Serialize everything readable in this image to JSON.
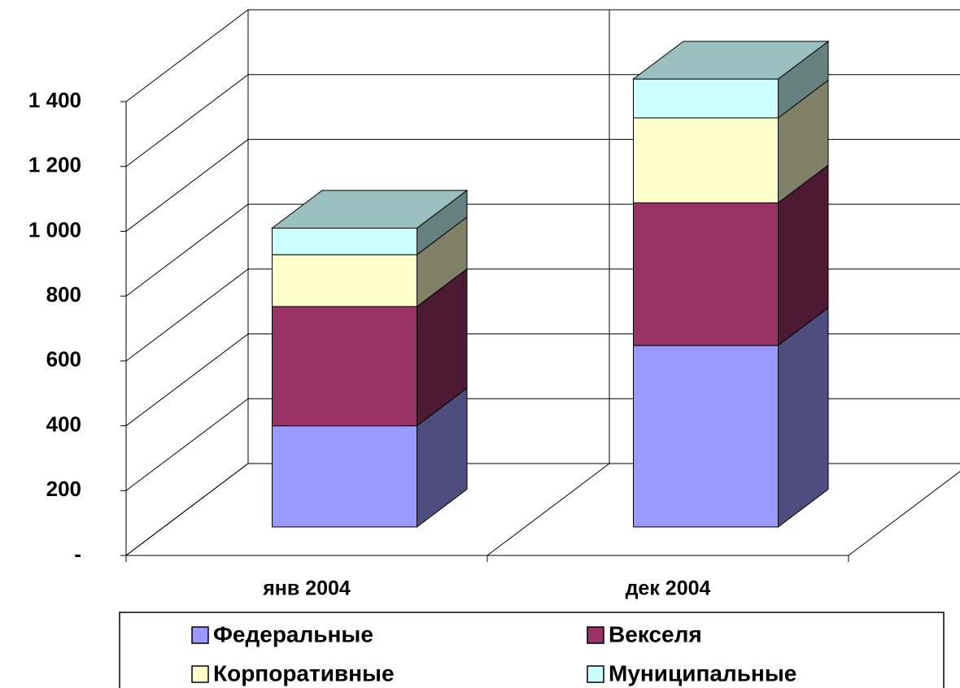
{
  "chart_data": {
    "type": "bar3d_stacked",
    "categories": [
      "янв 2004",
      "дек 2004"
    ],
    "series": [
      {
        "name": "Федеральные",
        "color": "#9999ff",
        "values": [
          312,
          560
        ]
      },
      {
        "name": "Векселя",
        "color": "#993366",
        "values": [
          368,
          440
        ]
      },
      {
        "name": "Корпоративные",
        "color": "#ffffcc",
        "values": [
          160,
          262
        ]
      },
      {
        "name": "Муниципальные",
        "color": "#ccffff",
        "values": [
          82,
          120
        ]
      }
    ],
    "ylim": [
      0,
      1400
    ],
    "yticks": [
      {
        "value": 0,
        "label": "-"
      },
      200,
      400,
      600,
      800,
      {
        "value": 1000,
        "label": "1 000"
      },
      {
        "value": 1200,
        "label": "1 200"
      },
      {
        "value": 1400,
        "label": "1 400"
      }
    ],
    "grid": true,
    "legend": "bottom"
  }
}
